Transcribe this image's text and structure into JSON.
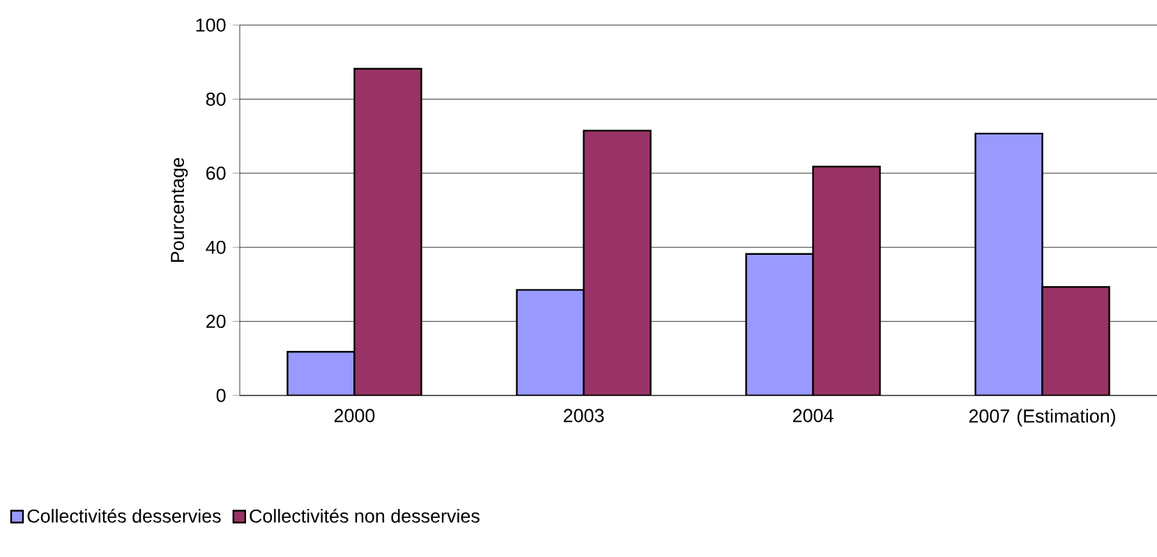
{
  "chart_data": {
    "type": "bar",
    "ylabel": "Pourcentage",
    "categories": [
      "2000",
      "2003",
      "2004",
      "2007 (Estimation)"
    ],
    "series": [
      {
        "name": "Collectivités desservies",
        "color": "#9999ff",
        "values": [
          11.8,
          28.5,
          38.2,
          70.7
        ]
      },
      {
        "name": "Collectivités non desservies",
        "color": "#993366",
        "values": [
          88.2,
          71.5,
          61.8,
          29.3
        ]
      }
    ],
    "ylim": [
      0,
      100
    ],
    "yticks": [
      0,
      20,
      40,
      60,
      80,
      100
    ],
    "grid": "y",
    "legend": "bottom"
  }
}
